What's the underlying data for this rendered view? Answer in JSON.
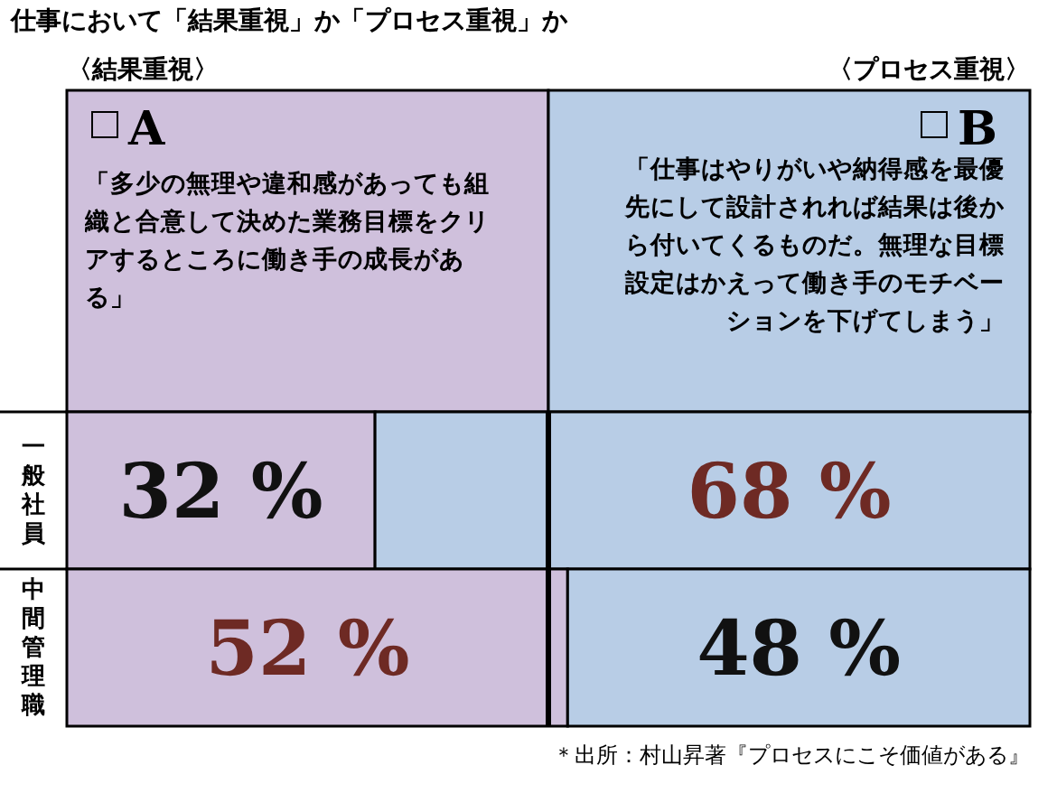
{
  "chart_data": {
    "type": "bar",
    "orientation": "horizontal",
    "stacked": true,
    "title": "仕事において「結果重視」か「プロセス重視」か",
    "categories": [
      "一般社員",
      "中間管理職"
    ],
    "series": [
      {
        "name": "A",
        "color": "#cfc0dc",
        "values": [
          32,
          52
        ],
        "value_labels": [
          "32 %",
          "52 %"
        ]
      },
      {
        "name": "B",
        "color": "#b8cde6",
        "values": [
          68,
          48
        ],
        "value_labels": [
          "68 %",
          "48 %"
        ]
      }
    ],
    "xlim": [
      0,
      100
    ],
    "tick_labels": "y",
    "legend": "top",
    "ref_lines": [
      {
        "axis": "x",
        "value": 50,
        "color": "#000000"
      }
    ],
    "annotations": [
      "〈結果重視〉",
      "〈プロセス重視〉",
      "「多少の無理や違和感があっても組織と合意して決めた業務目標をクリアするところに働き手の成長がある」",
      "「仕事はやりがいや納得感を最優先にして設計されれば結果は後から付いてくるものだ。無理な目標設定はかえって働き手のモチベーションを下げてしまう」",
      "＊出所：村山昇著『プロセスにこそ価値がある』"
    ]
  }
}
